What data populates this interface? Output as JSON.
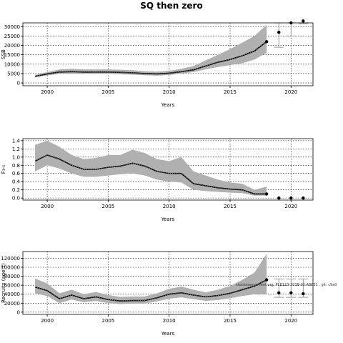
{
  "title": "SQ then zero",
  "chart_data": [
    {
      "type": "line",
      "ylabel": "SSB",
      "xlabel": "Years",
      "xlim": [
        1998,
        2021.8
      ],
      "ylim": [
        -1500,
        32000
      ],
      "xticks": [
        2000,
        2005,
        2010,
        2015,
        2020
      ],
      "yticks": [
        0,
        5000,
        10000,
        15000,
        20000,
        25000,
        30000
      ],
      "grid": true,
      "x": [
        1999,
        2000,
        2001,
        2002,
        2003,
        2004,
        2005,
        2006,
        2007,
        2008,
        2009,
        2010,
        2011,
        2012,
        2013,
        2014,
        2015,
        2016,
        2017,
        2018
      ],
      "median": [
        3500,
        4800,
        5800,
        6000,
        5800,
        5800,
        5800,
        5600,
        5400,
        5000,
        4800,
        5200,
        6000,
        7000,
        9000,
        11000,
        12500,
        14500,
        17000,
        22000
      ],
      "lower": [
        3000,
        4000,
        4800,
        5000,
        4800,
        4800,
        4800,
        4600,
        4400,
        4100,
        3900,
        4200,
        5000,
        5800,
        7200,
        8500,
        9500,
        10500,
        12500,
        16000
      ],
      "upper": [
        4200,
        5800,
        7200,
        7500,
        7200,
        7200,
        7200,
        7000,
        6800,
        6200,
        6000,
        6500,
        7500,
        9000,
        12000,
        15000,
        18000,
        21500,
        25000,
        31000
      ],
      "forecast": {
        "x": [
          2019,
          2020,
          2021
        ],
        "points": [
          27000,
          32000,
          33000
        ],
        "err_low": [
          19000,
          25000,
          31500
        ],
        "err_high": [
          32500,
          32500,
          32500
        ]
      }
    },
    {
      "type": "line",
      "ylabel": "F₃-₅",
      "xlabel": "Years",
      "xlim": [
        1998,
        2021.8
      ],
      "ylim": [
        -0.05,
        1.45
      ],
      "xticks": [
        2000,
        2005,
        2010,
        2015,
        2020
      ],
      "yticks": [
        0.0,
        0.2,
        0.4,
        0.6,
        0.8,
        1.0,
        1.2,
        1.4
      ],
      "grid": true,
      "x": [
        1999,
        2000,
        2001,
        2002,
        2003,
        2004,
        2005,
        2006,
        2007,
        2008,
        2009,
        2010,
        2011,
        2012,
        2013,
        2014,
        2015,
        2016,
        2017,
        2018
      ],
      "median": [
        0.9,
        1.05,
        0.95,
        0.8,
        0.7,
        0.7,
        0.75,
        0.78,
        0.85,
        0.78,
        0.65,
        0.6,
        0.6,
        0.35,
        0.3,
        0.25,
        0.22,
        0.2,
        0.1,
        0.1
      ],
      "lower": [
        0.65,
        0.8,
        0.72,
        0.6,
        0.52,
        0.52,
        0.55,
        0.58,
        0.6,
        0.55,
        0.45,
        0.4,
        0.38,
        0.2,
        0.17,
        0.15,
        0.13,
        0.12,
        0.06,
        0.06
      ],
      "upper": [
        1.3,
        1.4,
        1.25,
        1.05,
        0.95,
        0.98,
        1.05,
        1.05,
        1.18,
        1.1,
        0.95,
        0.9,
        1.0,
        0.65,
        0.55,
        0.45,
        0.38,
        0.35,
        0.2,
        0.28
      ],
      "forecast": {
        "x": [
          2019,
          2020,
          2021
        ],
        "points": [
          0,
          0,
          0
        ]
      }
    },
    {
      "type": "line",
      "ylabel": "Recruits (age 1)",
      "xlabel": "Years",
      "xlim": [
        1998,
        2021.8
      ],
      "ylim": [
        -5000,
        135000
      ],
      "xticks": [
        2000,
        2005,
        2010,
        2015,
        2020
      ],
      "yticks": [
        0,
        20000,
        40000,
        60000,
        80000,
        100000,
        120000
      ],
      "grid": true,
      "x": [
        1999,
        2000,
        2001,
        2002,
        2003,
        2004,
        2005,
        2006,
        2007,
        2008,
        2009,
        2010,
        2011,
        2012,
        2013,
        2014,
        2015,
        2016,
        2017,
        2018
      ],
      "median": [
        56000,
        48000,
        30000,
        38000,
        30000,
        34000,
        28000,
        25000,
        26000,
        26000,
        32000,
        40000,
        43000,
        38000,
        34000,
        37000,
        42000,
        50000,
        58000,
        72000
      ],
      "lower": [
        42000,
        36000,
        20000,
        28000,
        22000,
        25000,
        20000,
        18000,
        19000,
        19000,
        24000,
        30000,
        33000,
        29000,
        25000,
        27000,
        31000,
        36000,
        40000,
        40000
      ],
      "upper": [
        75000,
        64000,
        42000,
        50000,
        40000,
        45000,
        38000,
        34000,
        35000,
        35000,
        42000,
        52000,
        57000,
        50000,
        44000,
        50000,
        58000,
        72000,
        88000,
        130000
      ],
      "annotation": "stockassessment.org, PLE123-2018-02-49651 , git: c9a0",
      "forecast": {
        "x": [
          2019,
          2020,
          2021
        ],
        "points": [
          43000,
          43000,
          41000
        ],
        "err_low": [
          33000,
          33000,
          33000
        ],
        "err_high": [
          74000,
          74000,
          74000
        ]
      }
    }
  ]
}
